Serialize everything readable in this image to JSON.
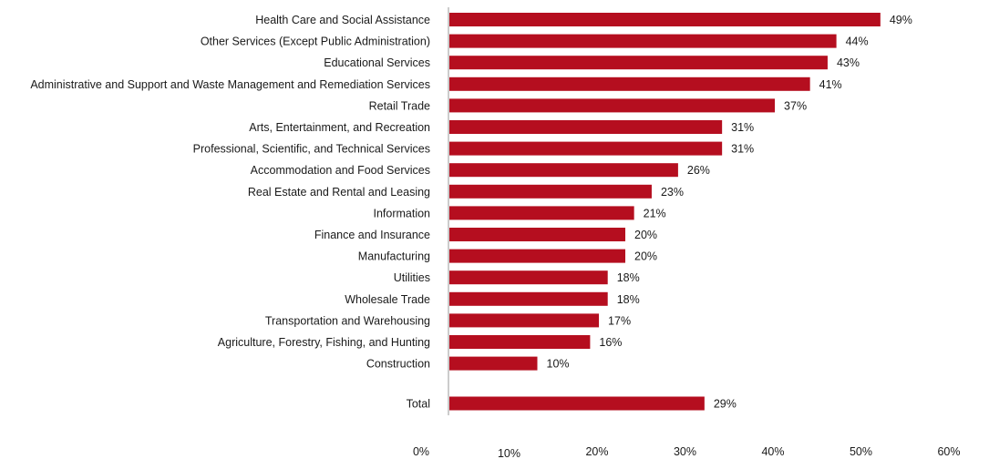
{
  "chart_data": {
    "type": "bar",
    "orientation": "horizontal",
    "categories": [
      "Health Care and Social Assistance",
      "Other Services (Except Public Administration)",
      "Educational Services",
      "Administrative and Support and Waste Management and Remediation Services",
      "Retail Trade",
      "Arts, Entertainment, and Recreation",
      "Professional, Scientific, and Technical Services",
      "Accommodation and Food Services",
      "Real Estate and Rental and Leasing",
      "Information",
      "Finance and Insurance",
      "Manufacturing",
      "Utilities",
      "Wholesale Trade",
      "Transportation and Warehousing",
      "Agriculture, Forestry, Fishing, and Hunting",
      "Construction",
      "Total"
    ],
    "values": [
      49,
      44,
      43,
      41,
      37,
      31,
      31,
      26,
      23,
      21,
      20,
      20,
      18,
      18,
      17,
      16,
      10,
      29
    ],
    "data_labels": [
      "49%",
      "44%",
      "43%",
      "41%",
      "37%",
      "31%",
      "31%",
      "26%",
      "23%",
      "21%",
      "20%",
      "20%",
      "18%",
      "18%",
      "17%",
      "16%",
      "10%",
      "29%"
    ],
    "xlim": [
      0,
      60
    ],
    "xticks": [
      0,
      10,
      20,
      30,
      40,
      50,
      60
    ],
    "xtick_labels": [
      "0%",
      "10%",
      "20%",
      "30%",
      "40%",
      "50%",
      "60%"
    ],
    "bar_color": "#b50e1f",
    "grid": false,
    "legend": "none"
  }
}
